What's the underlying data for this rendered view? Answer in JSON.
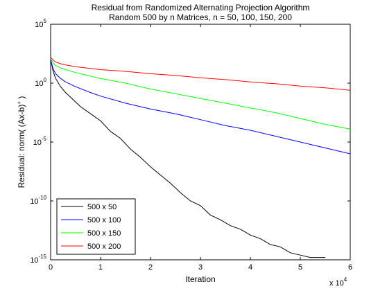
{
  "chart_data": {
    "type": "line",
    "title": "Residual from Randomized Alternating Projection Algorithm",
    "subtitle": "Random 500 by n Matrices, n = 50, 100, 150, 200",
    "xlabel": "Iteration",
    "ylabel": "Residual: norm( (Ax-b)",
    "ylabel_sup": "+",
    "ylabel_end": " )",
    "x_multiplier": "x 10",
    "x_multiplier_exp": "4",
    "xlim": [
      0,
      6
    ],
    "ylim_log10": [
      -15,
      5
    ],
    "y_scale": "log",
    "grid": false,
    "legend_position": "bottom-left",
    "xticks": [
      0,
      1,
      2,
      3,
      4,
      5,
      6
    ],
    "yticks": [
      {
        "base": "10",
        "exp": "5",
        "value": 5
      },
      {
        "base": "10",
        "exp": "0",
        "value": 0
      },
      {
        "base": "10",
        "exp": "-5",
        "value": -5
      },
      {
        "base": "10",
        "exp": "-10",
        "value": -10
      },
      {
        "base": "10",
        "exp": "-15",
        "value": -15
      }
    ],
    "series": [
      {
        "name": "500 x 50",
        "color": "#000000",
        "x": [
          0,
          0.05,
          0.1,
          0.2,
          0.3,
          0.4,
          0.5,
          0.6,
          0.8,
          1.0,
          1.2,
          1.4,
          1.6,
          1.8,
          2.0,
          2.2,
          2.4,
          2.6,
          2.8,
          3.0,
          3.2,
          3.4,
          3.6,
          3.8,
          4.0,
          4.2,
          4.4,
          4.6,
          4.8,
          5.0,
          5.2,
          5.4,
          5.5
        ],
        "y_log10": [
          2.0,
          1.0,
          0.4,
          -0.3,
          -0.8,
          -1.2,
          -1.6,
          -2.0,
          -2.6,
          -3.2,
          -4.1,
          -4.7,
          -5.6,
          -6.3,
          -7.1,
          -7.8,
          -8.5,
          -9.3,
          -10.0,
          -10.4,
          -11.2,
          -11.6,
          -12.1,
          -12.4,
          -12.9,
          -13.2,
          -13.7,
          -13.9,
          -14.4,
          -14.6,
          -14.8,
          -14.8,
          -14.8
        ]
      },
      {
        "name": "500 x 100",
        "color": "#0000ff",
        "x": [
          0,
          0.05,
          0.1,
          0.2,
          0.3,
          0.5,
          0.8,
          1.0,
          1.5,
          2.0,
          2.5,
          3.0,
          3.5,
          4.0,
          4.5,
          5.0,
          5.5,
          6.0
        ],
        "y_log10": [
          2.0,
          1.2,
          0.8,
          0.4,
          0.1,
          -0.3,
          -0.8,
          -1.1,
          -1.7,
          -2.2,
          -2.6,
          -3.1,
          -3.6,
          -4.0,
          -4.5,
          -5.0,
          -5.5,
          -6.0
        ]
      },
      {
        "name": "500 x 150",
        "color": "#00ff00",
        "x": [
          0,
          0.05,
          0.1,
          0.2,
          0.3,
          0.5,
          0.8,
          1.0,
          1.5,
          2.0,
          2.5,
          3.0,
          3.5,
          4.0,
          4.5,
          5.0,
          5.5,
          6.0
        ],
        "y_log10": [
          2.1,
          1.7,
          1.5,
          1.3,
          1.15,
          0.9,
          0.6,
          0.4,
          0.0,
          -0.5,
          -0.9,
          -1.3,
          -1.7,
          -2.1,
          -2.5,
          -3.0,
          -3.5,
          -3.9
        ]
      },
      {
        "name": "500 x 200",
        "color": "#ff0000",
        "x": [
          0,
          0.05,
          0.1,
          0.2,
          0.3,
          0.5,
          0.8,
          1.0,
          1.5,
          2.0,
          2.5,
          3.0,
          3.5,
          4.0,
          4.5,
          5.0,
          5.5,
          6.0
        ],
        "y_log10": [
          2.2,
          1.95,
          1.8,
          1.65,
          1.55,
          1.4,
          1.25,
          1.15,
          1.0,
          0.8,
          0.65,
          0.45,
          0.3,
          0.1,
          -0.05,
          -0.25,
          -0.4,
          -0.6
        ]
      }
    ]
  }
}
